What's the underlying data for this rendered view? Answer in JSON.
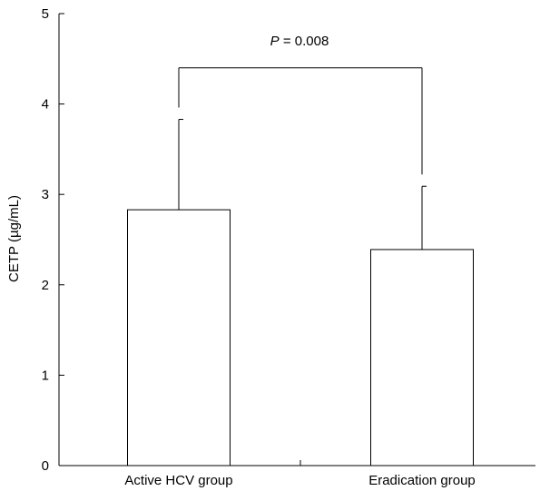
{
  "chart_data": {
    "type": "bar",
    "title": "",
    "xlabel": "",
    "ylabel": "CETP (µg/mL)",
    "ylim": [
      0,
      5
    ],
    "yticks": [
      0,
      1,
      2,
      3,
      4,
      5
    ],
    "grid": false,
    "categories": [
      "Active HCV group",
      "Eradication group"
    ],
    "values": [
      2.83,
      2.39
    ],
    "error_upper": [
      1.0,
      0.7
    ],
    "annotation": {
      "p_symbol": "P",
      "p_text": " = 0.008",
      "bracket_y": 4.4
    }
  }
}
